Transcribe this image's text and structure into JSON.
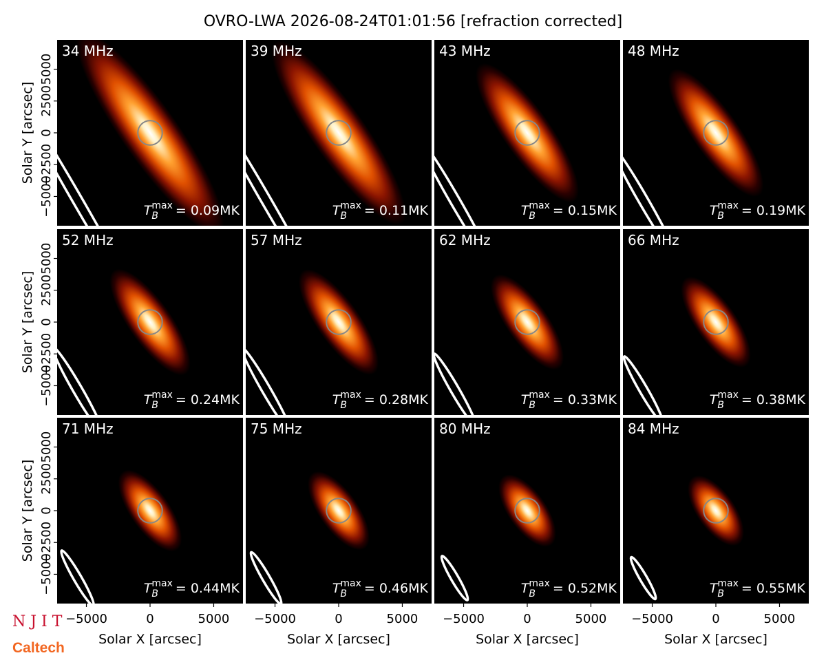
{
  "title": "OVRO-LWA 2026-08-24T01:01:56 [refraction corrected]",
  "axes": {
    "xlim": [
      -7300,
      7300
    ],
    "ylim": [
      -7300,
      7300
    ],
    "xticks": [
      {
        "value": -5000,
        "label": "−5000"
      },
      0,
      5000
    ],
    "yticks": [
      {
        "value": -5000,
        "label": "−5000"
      },
      {
        "value": -2500,
        "label": "−2500"
      },
      0,
      2500,
      5000
    ],
    "xlabel": "Solar X [arcsec]",
    "ylabel": "Solar Y [arcsec]"
  },
  "chart_data": [
    {
      "type": "image",
      "title": "34 MHz",
      "tb": {
        "symbol": "T",
        "subscript": "B",
        "superscript": "max",
        "text": "= 0.09MK"
      },
      "beam": {
        "major": 9000,
        "minor": 380
      }
    },
    {
      "type": "image",
      "title": "39 MHz",
      "tb": {
        "symbol": "T",
        "subscript": "B",
        "superscript": "max",
        "text": "= 0.11MK"
      },
      "beam": {
        "major": 8000,
        "minor": 380
      }
    },
    {
      "type": "image",
      "title": "43 MHz",
      "tb": {
        "symbol": "T",
        "subscript": "B",
        "superscript": "max",
        "text": "= 0.15MK"
      },
      "beam": {
        "major": 5600,
        "minor": 380
      }
    },
    {
      "type": "image",
      "title": "48 MHz",
      "tb": {
        "symbol": "T",
        "subscript": "B",
        "superscript": "max",
        "text": "= 0.19MK"
      },
      "beam": {
        "major": 5000,
        "minor": 370
      }
    },
    {
      "type": "image",
      "title": "52 MHz",
      "tb": {
        "symbol": "T",
        "subscript": "B",
        "superscript": "max",
        "text": "= 0.24MK"
      },
      "beam": {
        "major": 3850,
        "minor": 360
      }
    },
    {
      "type": "image",
      "title": "57 MHz",
      "tb": {
        "symbol": "T",
        "subscript": "B",
        "superscript": "max",
        "text": "= 0.28MK"
      },
      "beam": {
        "major": 3800,
        "minor": 340
      }
    },
    {
      "type": "image",
      "title": "62 MHz",
      "tb": {
        "symbol": "T",
        "subscript": "B",
        "superscript": "max",
        "text": "= 0.33MK"
      },
      "beam": {
        "major": 3250,
        "minor": 330
      }
    },
    {
      "type": "image",
      "title": "66 MHz",
      "tb": {
        "symbol": "T",
        "subscript": "B",
        "superscript": "max",
        "text": "= 0.38MK"
      },
      "beam": {
        "major": 3000,
        "minor": 320
      }
    },
    {
      "type": "image",
      "title": "71 MHz",
      "tb": {
        "symbol": "T",
        "subscript": "B",
        "superscript": "max",
        "text": "= 0.44MK"
      },
      "beam": {
        "major": 2500,
        "minor": 310
      }
    },
    {
      "type": "image",
      "title": "75 MHz",
      "tb": {
        "symbol": "T",
        "subscript": "B",
        "superscript": "max",
        "text": "= 0.46MK"
      },
      "beam": {
        "major": 2350,
        "minor": 300
      }
    },
    {
      "type": "image",
      "title": "80 MHz",
      "tb": {
        "symbol": "T",
        "subscript": "B",
        "superscript": "max",
        "text": "= 0.52MK"
      },
      "beam": {
        "major": 2000,
        "minor": 290
      }
    },
    {
      "type": "image",
      "title": "84 MHz",
      "tb": {
        "symbol": "T",
        "subscript": "B",
        "superscript": "max",
        "text": "= 0.55MK"
      },
      "beam": {
        "major": 1900,
        "minor": 280
      }
    }
  ],
  "logos": {
    "njit": "N J I T",
    "caltech": "Caltech"
  }
}
